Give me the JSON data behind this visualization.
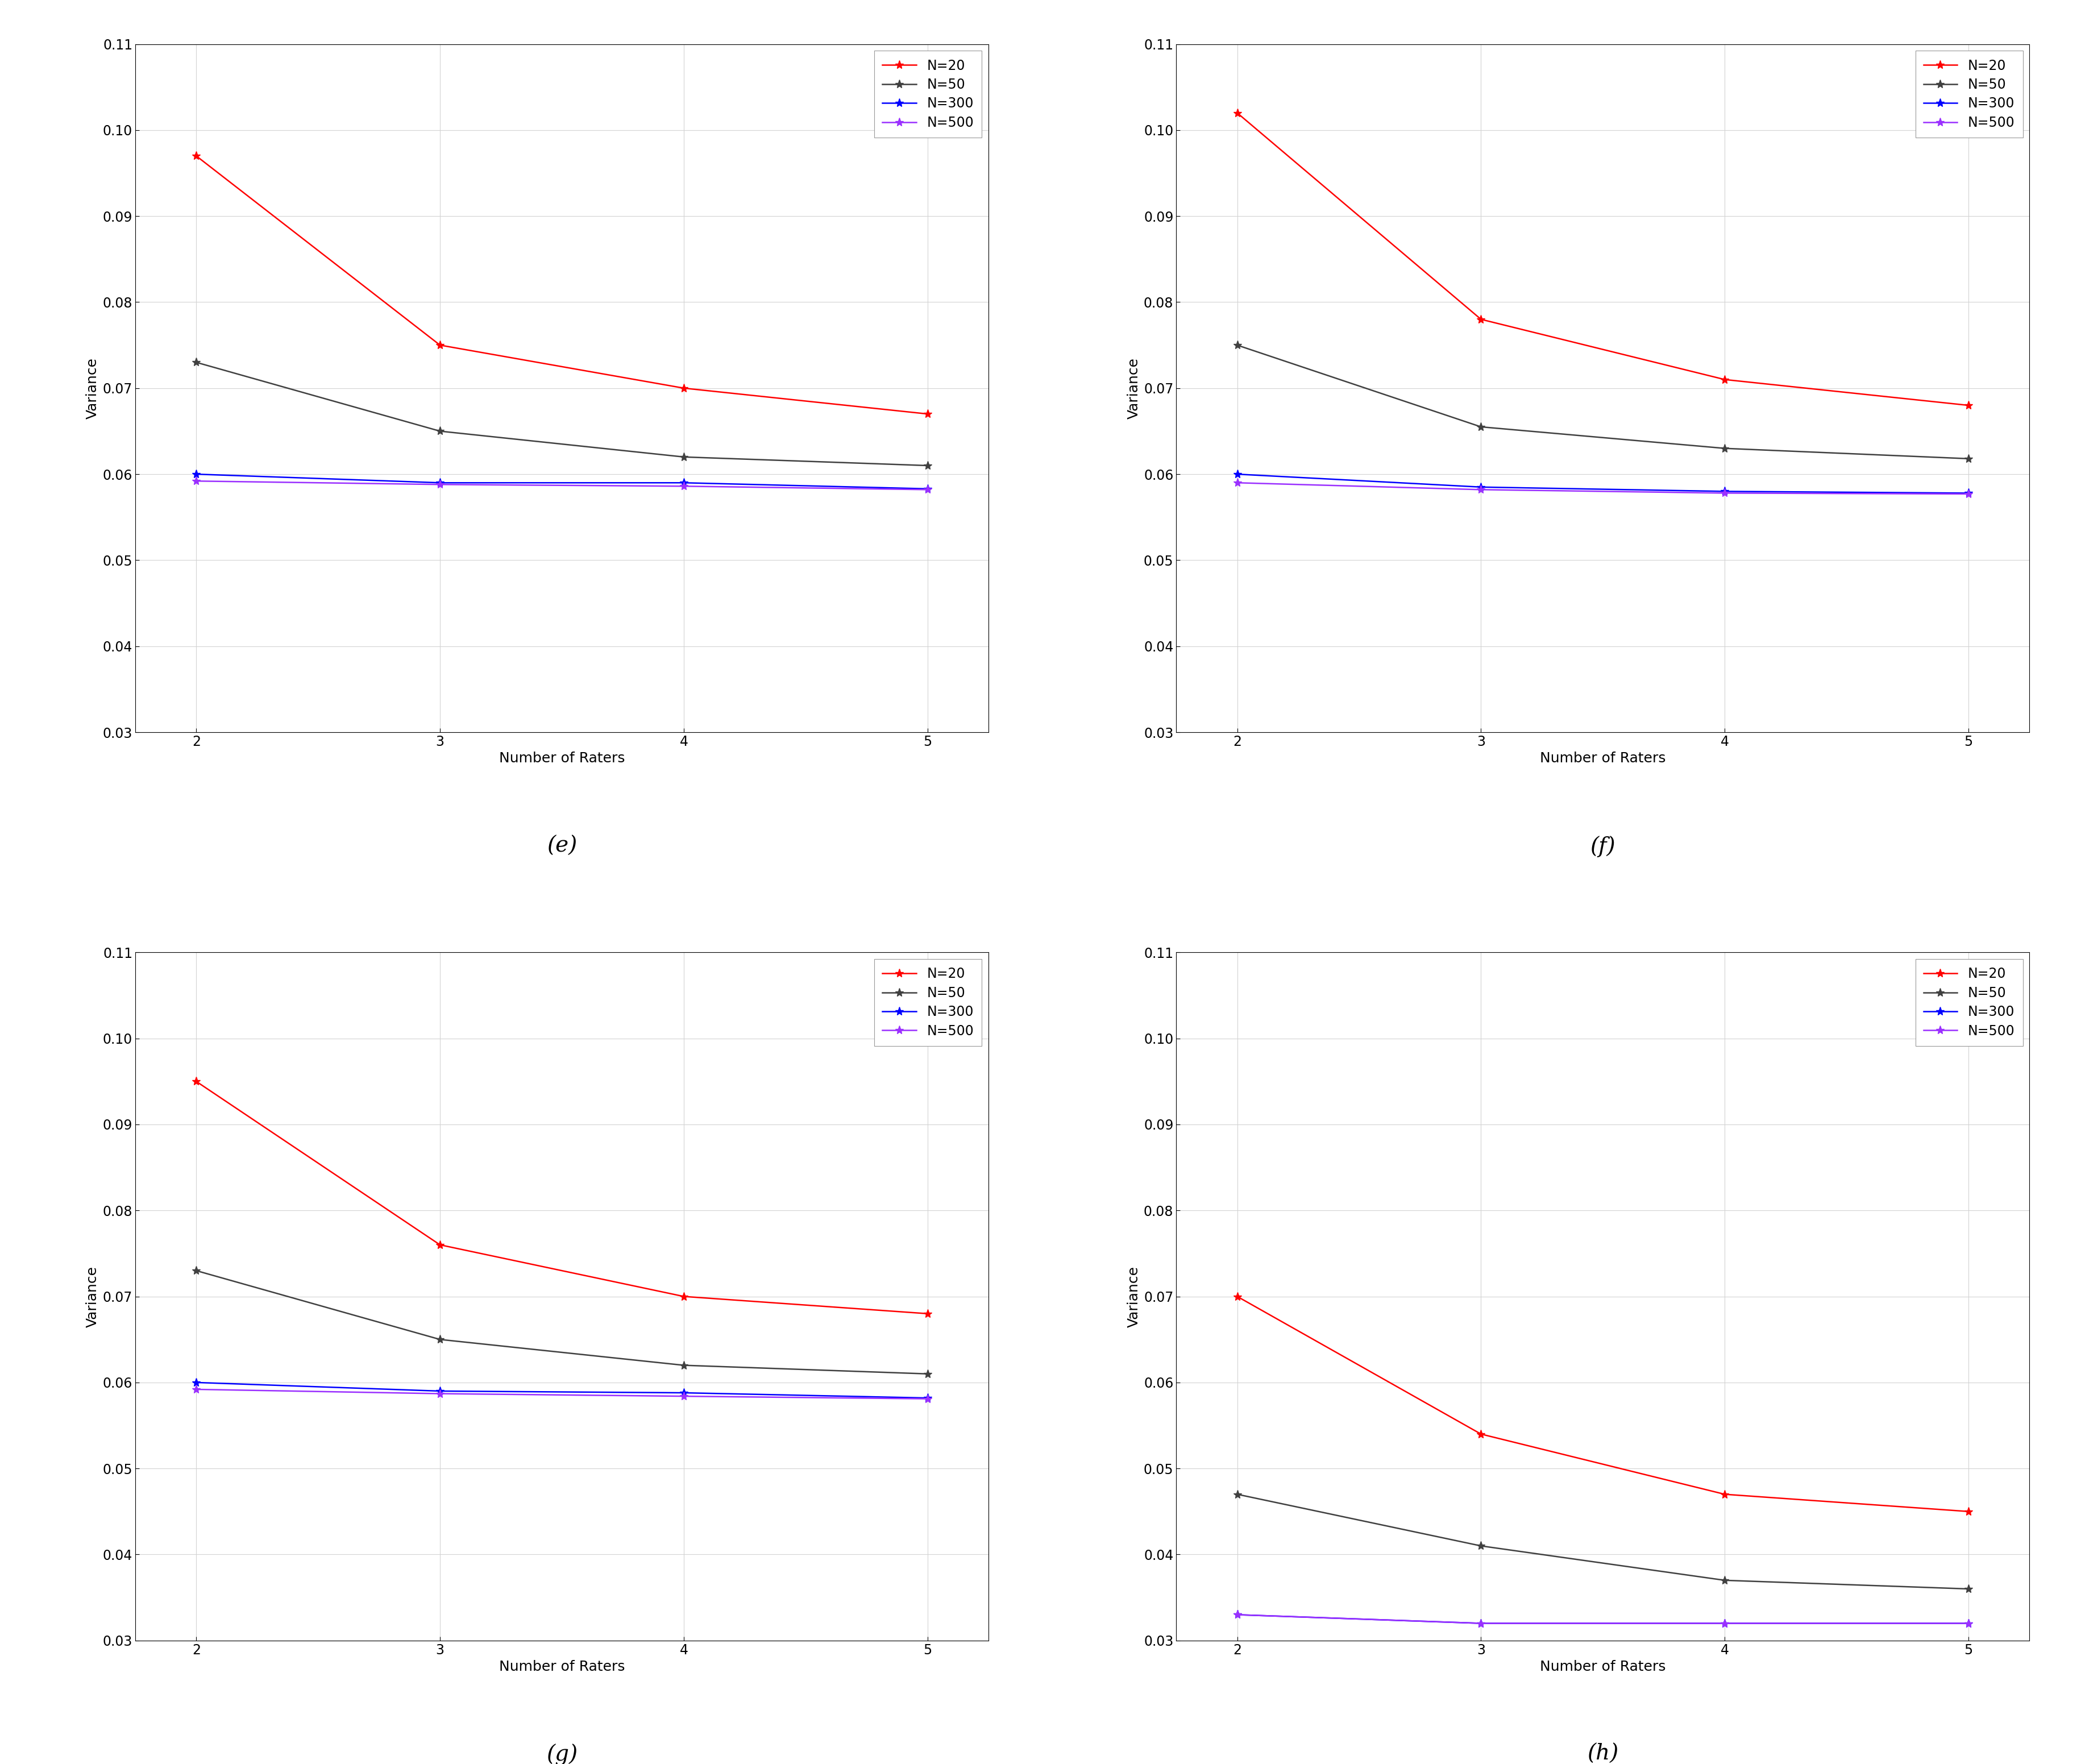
{
  "x": [
    2,
    3,
    4,
    5
  ],
  "subplots": [
    {
      "label": "e",
      "N20": [
        0.097,
        0.075,
        0.07,
        0.067
      ],
      "N50": [
        0.073,
        0.065,
        0.062,
        0.061
      ],
      "N300": [
        0.06,
        0.059,
        0.059,
        0.0583
      ],
      "N500": [
        0.0592,
        0.0588,
        0.0586,
        0.0582
      ]
    },
    {
      "label": "f",
      "N20": [
        0.102,
        0.078,
        0.071,
        0.068
      ],
      "N50": [
        0.075,
        0.0655,
        0.063,
        0.0618
      ],
      "N300": [
        0.06,
        0.0585,
        0.058,
        0.0578
      ],
      "N500": [
        0.059,
        0.0582,
        0.0578,
        0.0577
      ]
    },
    {
      "label": "g",
      "N20": [
        0.095,
        0.076,
        0.07,
        0.068
      ],
      "N50": [
        0.073,
        0.065,
        0.062,
        0.061
      ],
      "N300": [
        0.06,
        0.059,
        0.0588,
        0.0582
      ],
      "N500": [
        0.0592,
        0.0587,
        0.0584,
        0.0581
      ]
    },
    {
      "label": "h",
      "N20": [
        0.07,
        0.054,
        0.047,
        0.045
      ],
      "N50": [
        0.047,
        0.041,
        0.037,
        0.036
      ],
      "N300": [
        0.033,
        0.032,
        0.032,
        0.032
      ],
      "N500": [
        0.033,
        0.032,
        0.032,
        0.032
      ]
    }
  ],
  "ylim": [
    0.03,
    0.11
  ],
  "yticks": [
    0.03,
    0.04,
    0.05,
    0.06,
    0.07,
    0.08,
    0.09,
    0.1,
    0.11
  ],
  "colors": {
    "N20": "#FF0000",
    "N50": "#404040",
    "N300": "#0000FF",
    "N500": "#9B30FF"
  },
  "legend_labels": [
    "N=20",
    "N=50",
    "N=300",
    "N=500"
  ],
  "xlabel": "Number of Raters",
  "ylabel": "Variance",
  "background_color": "#FFFFFF",
  "axes_bg_color": "#FFFFFF",
  "grid_color": "#D3D3D3",
  "label_fontsize": 18,
  "tick_fontsize": 17,
  "legend_fontsize": 17,
  "caption_fontsize": 28,
  "linewidth": 1.8,
  "markersize": 11,
  "marker": "*"
}
